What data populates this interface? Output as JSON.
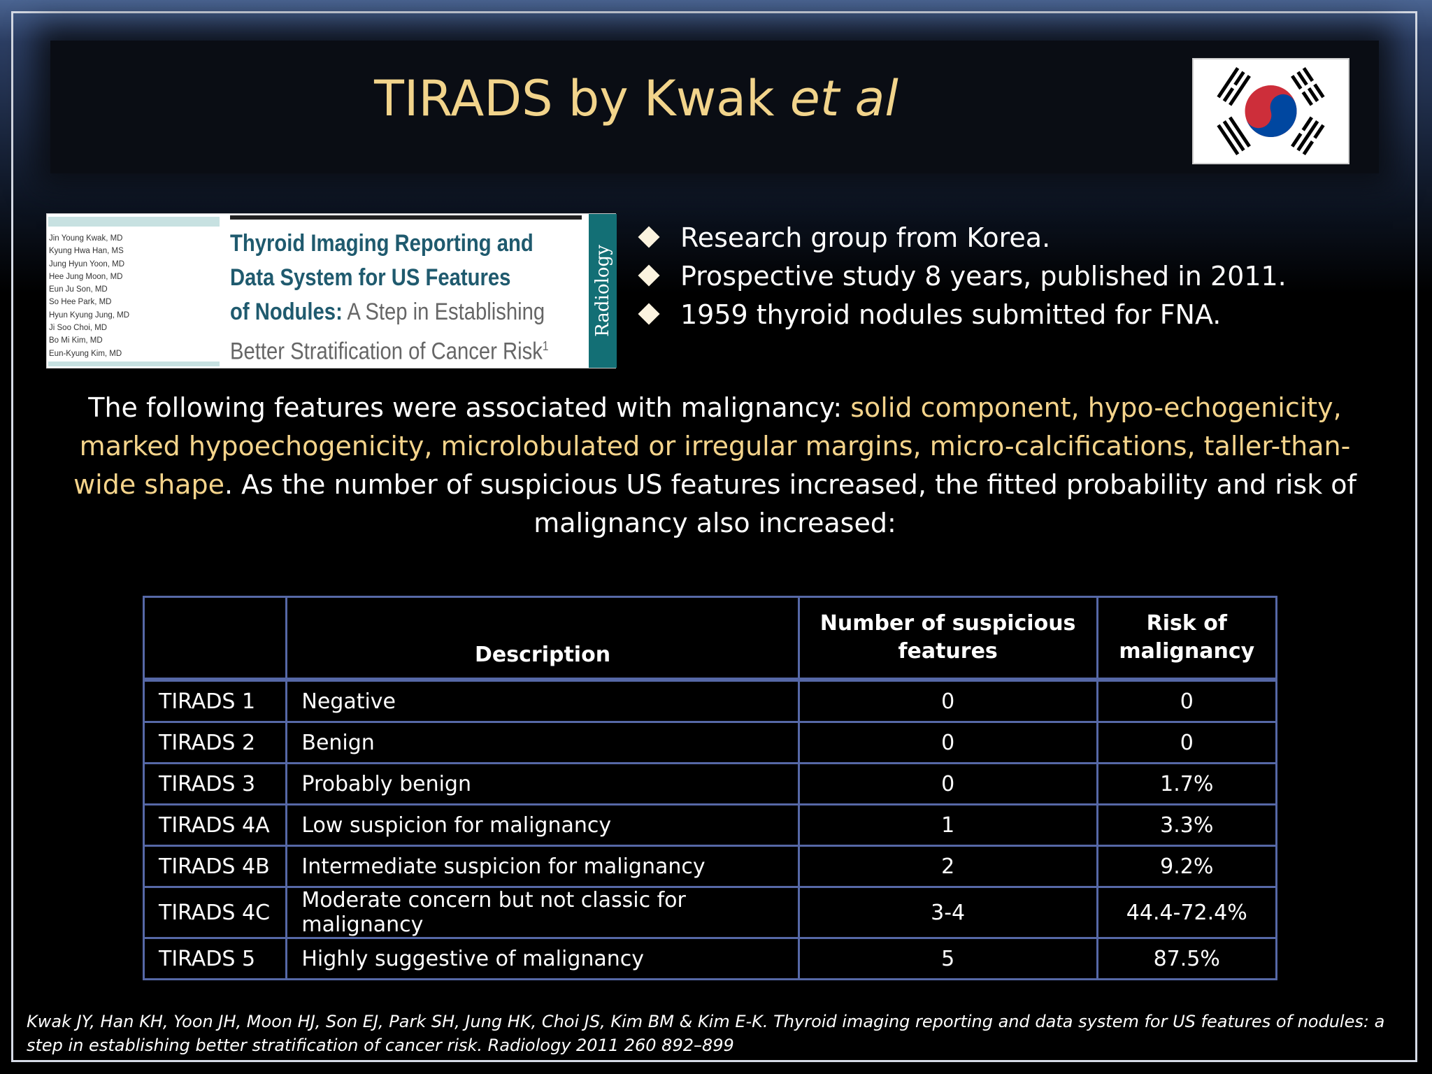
{
  "title": {
    "main": "TIRADS by Kwak ",
    "italic": "et al"
  },
  "paper": {
    "authors": [
      "Jin Young Kwak, MD",
      "Kyung Hwa Han, MS",
      "Jung Hyun Yoon, MD",
      "Hee Jung Moon, MD",
      "Eun Ju Son, MD",
      "So Hee Park, MD",
      "Hyun Kyung Jung, MD",
      "Ji Soo Choi, MD",
      "Bo Mi Kim, MD",
      "Eun-Kyung Kim, MD"
    ],
    "title_line1": "Thyroid Imaging Reporting and",
    "title_line2": "Data System for US Features",
    "title_line3_bold": "of Nodules:",
    "title_line3_light": " A Step in Establishing",
    "title_line4": "Better Stratification of Cancer Risk",
    "title_sup": "1",
    "journal": "Radiology"
  },
  "bullets": [
    "Research group from Korea.",
    "Prospective study 8 years, published in 2011.",
    "1959 thyroid nodules submitted for FNA."
  ],
  "paragraph": {
    "intro": "The following features were associated with malignancy: ",
    "highlight": "solid component, hypo-echogenicity, marked hypoechogenicity, microlobulated or irregular margins, micro-calcifications, taller-than-wide shape",
    "outro": ". As the number of suspicious US features increased, the fitted probability and risk of malignancy also increased:"
  },
  "table": {
    "headers": [
      "",
      "Description",
      "Number of suspicious features",
      "Risk of malignancy"
    ],
    "rows": [
      [
        "TIRADS 1",
        "Negative",
        "0",
        "0"
      ],
      [
        "TIRADS 2",
        "Benign",
        "0",
        "0"
      ],
      [
        "TIRADS 3",
        "Probably benign",
        "0",
        "1.7%"
      ],
      [
        "TIRADS 4A",
        "Low suspicion for malignancy",
        "1",
        "3.3%"
      ],
      [
        "TIRADS 4B",
        "Intermediate suspicion for malignancy",
        "2",
        "9.2%"
      ],
      [
        "TIRADS 4C",
        "Moderate concern but not classic for malignancy",
        "3-4",
        "44.4-72.4%"
      ],
      [
        "TIRADS 5",
        "Highly suggestive  of malignancy",
        "5",
        "87.5%"
      ]
    ]
  },
  "citation": "Kwak JY, Han KH, Yoon JH, Moon HJ, Son EJ, Park SH, Jung HK, Choi JS, Kim BM & Kim E-K. Thyroid imaging reporting and data system for US features of nodules: a step in establishing better stratification of cancer risk. Radiology 2011 260 892–899",
  "colors": {
    "title": "#f2d48b",
    "highlight": "#f5d48b",
    "table_border": "#5668a6",
    "flag_red": "#cd2e3a",
    "flag_blue": "#0047a0"
  },
  "icons": {
    "flag": "south-korea-flag",
    "bullet": "diamond-bullet"
  }
}
